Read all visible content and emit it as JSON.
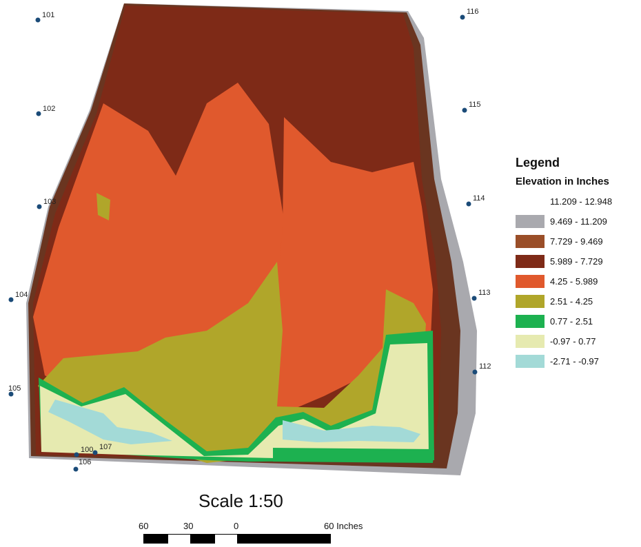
{
  "legend": {
    "title": "Legend",
    "subtitle": "Elevation in Inches",
    "classes": [
      {
        "label": "11.209 - 12.948",
        "color": "#ffffff"
      },
      {
        "label": "9.469 - 11.209",
        "color": "#a9a9ae"
      },
      {
        "label": "7.729 - 9.469",
        "color": "#9a4e28"
      },
      {
        "label": "5.989 - 7.729",
        "color": "#7e2a17"
      },
      {
        "label": "4.25 - 5.989",
        "color": "#e0592d"
      },
      {
        "label": "2.51 - 4.25",
        "color": "#b0a62a"
      },
      {
        "label": "0.77 - 2.51",
        "color": "#1db150"
      },
      {
        "label": "-0.97 - 0.77",
        "color": "#e6eab0"
      },
      {
        "label": "-2.71 - -0.97",
        "color": "#a3dad7"
      }
    ]
  },
  "stations": {
    "s101": "101",
    "s102": "102",
    "s103": "103",
    "s104": "104",
    "s105": "105",
    "s106": "106",
    "s100": "100",
    "s107": "107",
    "s112": "112",
    "s113": "113",
    "s114": "114",
    "s115": "115",
    "s116": "116"
  },
  "scale": {
    "title": "Scale 1:50",
    "tick_60_left": "60",
    "tick_30": "30",
    "tick_0": "0",
    "tick_60_right": "60 Inches"
  },
  "colors": {
    "station_marker": "#1b4b78"
  }
}
